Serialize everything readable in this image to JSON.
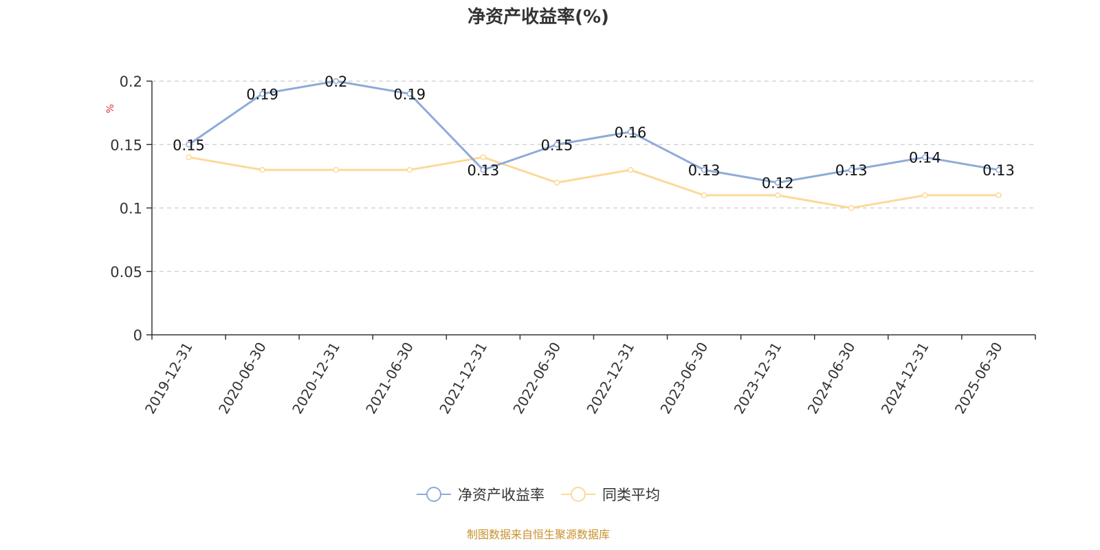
{
  "chart_data": {
    "type": "line",
    "title": "净资产收益率(%)",
    "ylabel": "%",
    "ylim": [
      0,
      0.2
    ],
    "yticks": [
      "0",
      "0.05",
      "0.1",
      "0.15",
      "0.2"
    ],
    "grid": true,
    "legend_position": "bottom-center",
    "categories": [
      "2019-12-31",
      "2020-06-30",
      "2020-12-31",
      "2021-06-30",
      "2021-12-31",
      "2022-06-30",
      "2022-12-31",
      "2023-06-30",
      "2023-12-31",
      "2024-06-30",
      "2024-12-31",
      "2025-06-30"
    ],
    "series": [
      {
        "name": "净资产收益率",
        "color": "#8eaad8",
        "values": [
          0.15,
          0.19,
          0.2,
          0.19,
          0.13,
          0.15,
          0.16,
          0.13,
          0.12,
          0.13,
          0.14,
          0.13
        ],
        "labels": [
          "0.15",
          "0.19",
          "0.2",
          "0.19",
          "0.13",
          "0.15",
          "0.16",
          "0.13",
          "0.12",
          "0.13",
          "0.14",
          "0.13"
        ]
      },
      {
        "name": "同类平均",
        "color": "#fbd999",
        "values": [
          0.14,
          0.13,
          0.13,
          0.13,
          0.14,
          0.12,
          0.13,
          0.11,
          0.11,
          0.1,
          0.11,
          0.11
        ]
      }
    ]
  },
  "footer": {
    "source": "制图数据来自恒生聚源数据库"
  },
  "colors": {
    "axis": "#333333",
    "grid": "#cccccc",
    "ylabel": "#e03030",
    "source": "#c8922e"
  }
}
